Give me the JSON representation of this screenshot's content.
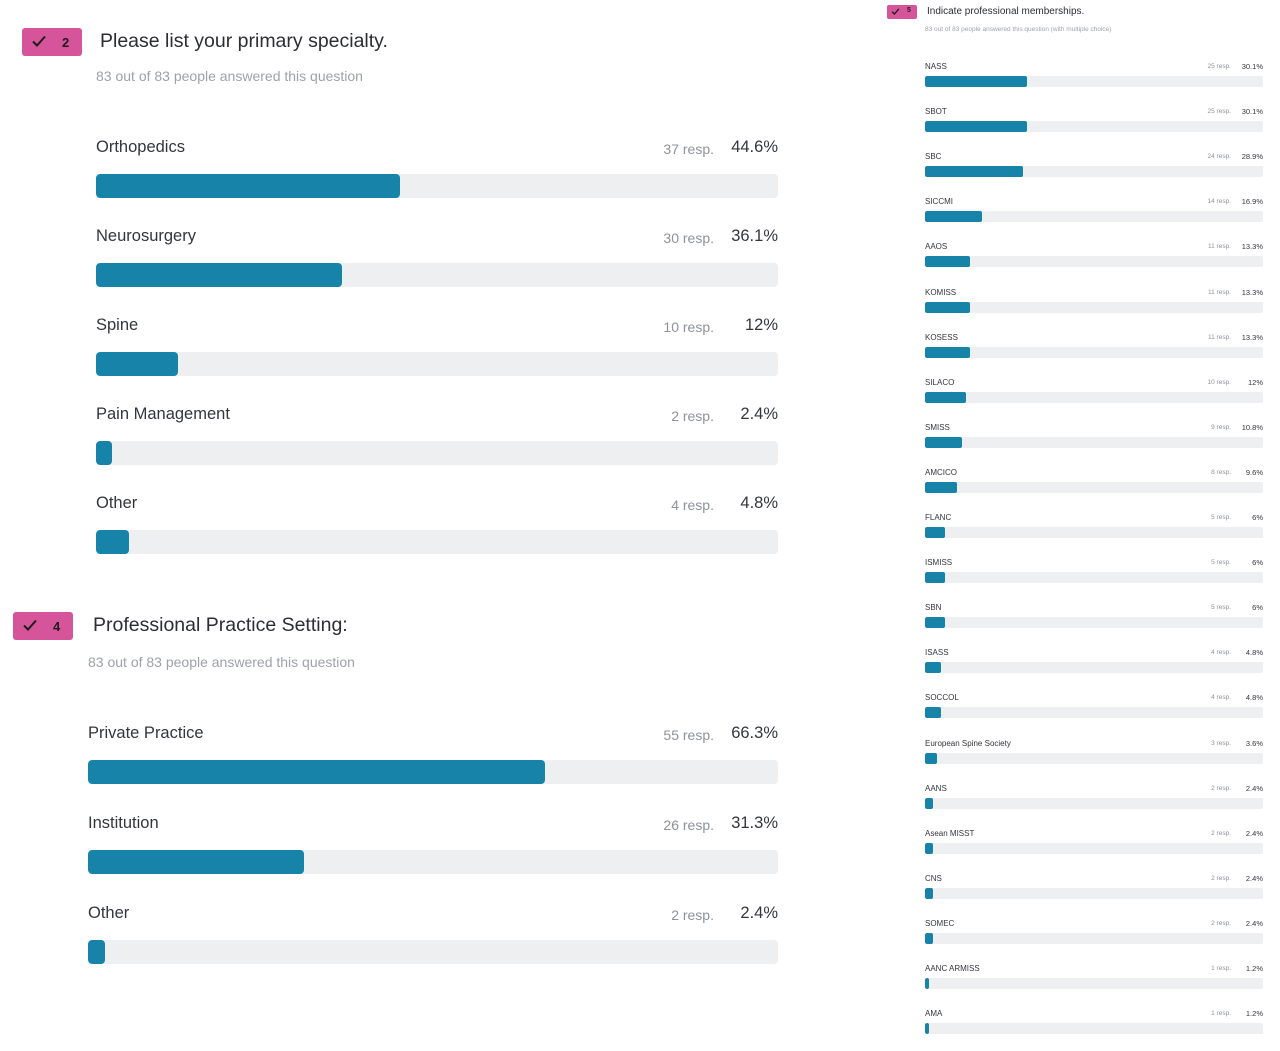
{
  "chart_data": [
    {
      "type": "bar",
      "id": "q2",
      "badge_number": "2",
      "title": "Please list your primary specialty.",
      "subtitle": "83 out of 83 people answered this question",
      "categories": [
        "Orthopedics",
        "Neurosurgery",
        "Spine",
        "Pain Management",
        "Other"
      ],
      "responses": [
        "37 resp.",
        "30 resp.",
        "10 resp.",
        "2 resp.",
        "4 resp."
      ],
      "percent_labels": [
        "44.6%",
        "36.1%",
        "12%",
        "2.4%",
        "4.8%"
      ],
      "values": [
        44.6,
        36.1,
        12,
        2.4,
        4.8
      ],
      "xlim": [
        0,
        100
      ]
    },
    {
      "type": "bar",
      "id": "q4",
      "badge_number": "4",
      "title": "Professional Practice Setting:",
      "subtitle": "83 out of 83 people answered this question",
      "categories": [
        "Private Practice",
        "Institution",
        "Other"
      ],
      "responses": [
        "55 resp.",
        "26 resp.",
        "2 resp."
      ],
      "percent_labels": [
        "66.3%",
        "31.3%",
        "2.4%"
      ],
      "values": [
        66.3,
        31.3,
        2.4
      ],
      "xlim": [
        0,
        100
      ]
    },
    {
      "type": "bar",
      "id": "q5",
      "badge_number": "5",
      "title": "Indicate professional memberships.",
      "subtitle": "83 out of 83 people answered this question (with multiple choice)",
      "categories": [
        "NASS",
        "SBOT",
        "SBC",
        "SICCMI",
        "AAOS",
        "KOMISS",
        "KOSESS",
        "SILACO",
        "SMISS",
        "AMCICO",
        "FLANC",
        "ISMISS",
        "SBN",
        "ISASS",
        "SOCCOL",
        "European Spine Society",
        "AANS",
        "Asean MISST",
        "CNS",
        "SOMEC",
        "AANC ARMISS",
        "AMA"
      ],
      "responses": [
        "25 resp.",
        "25 resp.",
        "24 resp.",
        "14 resp.",
        "11 resp.",
        "11 resp.",
        "11 resp.",
        "10 resp.",
        "9 resp.",
        "8 resp.",
        "5 resp.",
        "5 resp.",
        "5 resp.",
        "4 resp.",
        "4 resp.",
        "3 resp.",
        "2 resp.",
        "2 resp.",
        "2 resp.",
        "2 resp.",
        "1 resp.",
        "1 resp."
      ],
      "percent_labels": [
        "30.1%",
        "30.1%",
        "28.9%",
        "16.9%",
        "13.3%",
        "13.3%",
        "13.3%",
        "12%",
        "10.8%",
        "9.6%",
        "6%",
        "6%",
        "6%",
        "4.8%",
        "4.8%",
        "3.6%",
        "2.4%",
        "2.4%",
        "2.4%",
        "2.4%",
        "1.2%",
        "1.2%"
      ],
      "values": [
        30.1,
        30.1,
        28.9,
        16.9,
        13.3,
        13.3,
        13.3,
        12,
        10.8,
        9.6,
        6,
        6,
        6,
        4.8,
        4.8,
        3.6,
        2.4,
        2.4,
        2.4,
        2.4,
        1.2,
        1.2
      ],
      "xlim": [
        0,
        100
      ]
    }
  ],
  "colors": {
    "badge": "#d6559a",
    "bar_fill": "#1783a8",
    "bar_track": "#eeeff1"
  },
  "icons": {
    "badge_icon": "check-icon"
  }
}
